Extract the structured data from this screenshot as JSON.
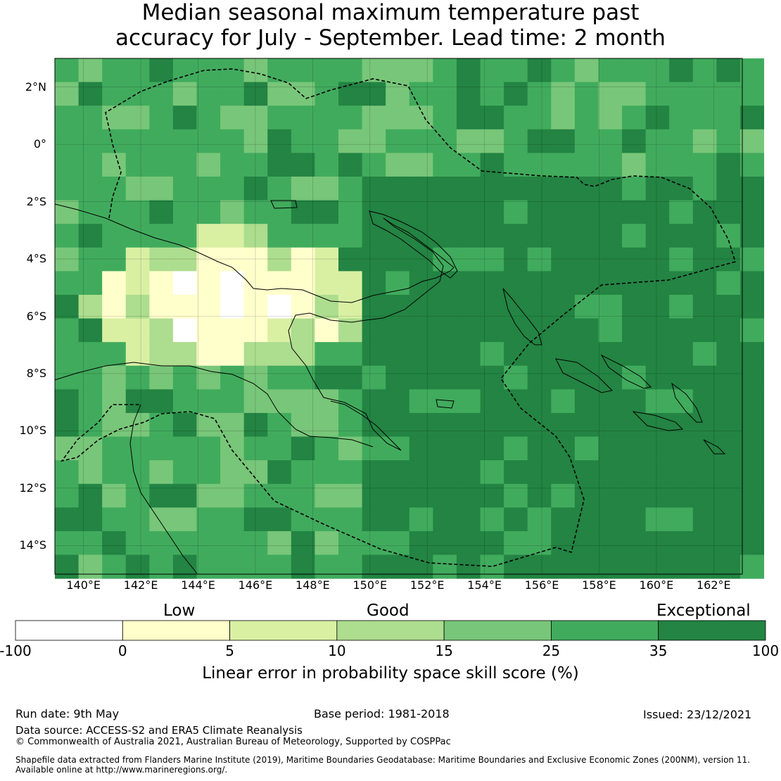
{
  "title_line1": "Median seasonal maximum temperature past",
  "title_line2": "accuracy for July - September. Lead time: 2 month",
  "map": {
    "lat_ticks": [
      "2°N",
      "0°",
      "2°S",
      "4°S",
      "6°S",
      "8°S",
      "10°S",
      "12°S",
      "14°S"
    ],
    "lon_ticks": [
      "140°E",
      "142°E",
      "144°E",
      "146°E",
      "148°E",
      "150°E",
      "152°E",
      "154°E",
      "156°E",
      "158°E",
      "160°E",
      "162°E"
    ],
    "lon_range": [
      139,
      163
    ],
    "lat_range": [
      -15,
      3
    ]
  },
  "legend": {
    "categories": [
      "Low",
      "Good",
      "Exceptional"
    ],
    "ticks": [
      "-100",
      "0",
      "5",
      "10",
      "15",
      "25",
      "35",
      "100"
    ],
    "colors": [
      "#ffffff",
      "#ffffcc",
      "#d9f0a3",
      "#addd8e",
      "#78c679",
      "#41ab5d",
      "#238443"
    ],
    "label": "Linear error in probability space skill score (%)"
  },
  "footer": {
    "run_date": "Run date: 9th May",
    "base_period": "Base period: 1981-2018",
    "issued": "Issued: 23/12/2021",
    "data_source": "Data source: ACCESS-S2 and ERA5 Climate Reanalysis",
    "copyright": "© Commonwealth of Australia 2021, Australian Bureau of Meteorology, Supported by COSPPac",
    "shapefile_line1": "Shapefile data extracted from Flanders Marine Institute (2019), Maritime Boundaries Geodatabase: Maritime Boundaries and Exclusive Economic Zones (200NM), version 11.",
    "shapefile_line2": "Available online at http://www.marineregions.org/."
  }
}
